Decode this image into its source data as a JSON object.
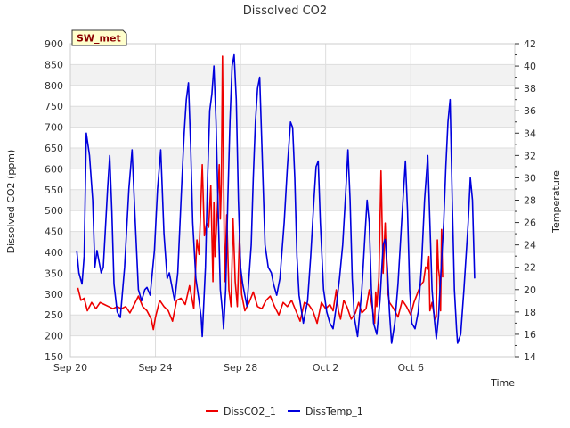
{
  "chart_data": {
    "type": "line",
    "title": "Dissolved CO2",
    "xlabel": "Time",
    "ylabel": "Dissolved CO2 (ppm)",
    "y2label": "Temperature",
    "site_badge": "SW_met",
    "xlim": [
      0,
      18
    ],
    "x_ticks": [
      {
        "value": 0,
        "label": "Sep 20"
      },
      {
        "value": 4,
        "label": "Sep 24"
      },
      {
        "value": 8,
        "label": "Sep 28"
      },
      {
        "value": 12,
        "label": "Oct 2"
      },
      {
        "value": 16,
        "label": "Oct 6"
      }
    ],
    "ylim": [
      150,
      900
    ],
    "y_ticks": [
      150,
      200,
      250,
      300,
      350,
      400,
      450,
      500,
      550,
      600,
      650,
      700,
      750,
      800,
      850,
      900
    ],
    "y2lim": [
      14,
      42
    ],
    "y2_ticks": [
      14,
      16,
      18,
      20,
      22,
      24,
      26,
      28,
      30,
      32,
      34,
      36,
      38,
      40,
      42
    ],
    "grid": true,
    "legend_position": "bottom-center",
    "series": [
      {
        "name": "DissCO2_1",
        "axis": "left",
        "color": "#ee0000",
        "points": [
          [
            0.35,
            315
          ],
          [
            0.5,
            285
          ],
          [
            0.65,
            290
          ],
          [
            0.8,
            260
          ],
          [
            1.0,
            280
          ],
          [
            1.2,
            265
          ],
          [
            1.4,
            280
          ],
          [
            1.6,
            275
          ],
          [
            1.8,
            270
          ],
          [
            2.0,
            265
          ],
          [
            2.2,
            270
          ],
          [
            2.4,
            265
          ],
          [
            2.6,
            270
          ],
          [
            2.8,
            255
          ],
          [
            3.0,
            275
          ],
          [
            3.2,
            295
          ],
          [
            3.4,
            270
          ],
          [
            3.6,
            260
          ],
          [
            3.8,
            240
          ],
          [
            3.9,
            215
          ],
          [
            4.0,
            245
          ],
          [
            4.2,
            285
          ],
          [
            4.4,
            270
          ],
          [
            4.6,
            260
          ],
          [
            4.8,
            235
          ],
          [
            5.0,
            285
          ],
          [
            5.2,
            290
          ],
          [
            5.4,
            275
          ],
          [
            5.6,
            320
          ],
          [
            5.8,
            265
          ],
          [
            5.95,
            430
          ],
          [
            6.05,
            395
          ],
          [
            6.15,
            540
          ],
          [
            6.2,
            610
          ],
          [
            6.3,
            440
          ],
          [
            6.4,
            470
          ],
          [
            6.5,
            460
          ],
          [
            6.6,
            560
          ],
          [
            6.7,
            330
          ],
          [
            6.75,
            520
          ],
          [
            6.8,
            390
          ],
          [
            6.9,
            490
          ],
          [
            7.0,
            610
          ],
          [
            7.05,
            480
          ],
          [
            7.1,
            565
          ],
          [
            7.15,
            870
          ],
          [
            7.25,
            330
          ],
          [
            7.35,
            490
          ],
          [
            7.45,
            310
          ],
          [
            7.55,
            270
          ],
          [
            7.65,
            480
          ],
          [
            7.75,
            330
          ],
          [
            7.85,
            270
          ],
          [
            7.95,
            440
          ],
          [
            8.05,
            300
          ],
          [
            8.2,
            260
          ],
          [
            8.4,
            280
          ],
          [
            8.6,
            305
          ],
          [
            8.8,
            270
          ],
          [
            9.0,
            265
          ],
          [
            9.2,
            285
          ],
          [
            9.4,
            295
          ],
          [
            9.6,
            270
          ],
          [
            9.8,
            250
          ],
          [
            10.0,
            280
          ],
          [
            10.2,
            270
          ],
          [
            10.4,
            285
          ],
          [
            10.6,
            260
          ],
          [
            10.8,
            235
          ],
          [
            11.0,
            280
          ],
          [
            11.2,
            275
          ],
          [
            11.4,
            260
          ],
          [
            11.6,
            230
          ],
          [
            11.8,
            280
          ],
          [
            12.0,
            265
          ],
          [
            12.2,
            275
          ],
          [
            12.35,
            260
          ],
          [
            12.5,
            310
          ],
          [
            12.6,
            260
          ],
          [
            12.7,
            240
          ],
          [
            12.85,
            285
          ],
          [
            13.0,
            270
          ],
          [
            13.2,
            240
          ],
          [
            13.4,
            255
          ],
          [
            13.55,
            280
          ],
          [
            13.7,
            255
          ],
          [
            13.9,
            265
          ],
          [
            14.05,
            310
          ],
          [
            14.2,
            265
          ],
          [
            14.3,
            230
          ],
          [
            14.35,
            305
          ],
          [
            14.4,
            270
          ],
          [
            14.5,
            340
          ],
          [
            14.6,
            595
          ],
          [
            14.7,
            350
          ],
          [
            14.8,
            470
          ],
          [
            14.9,
            310
          ],
          [
            15.0,
            280
          ],
          [
            15.2,
            265
          ],
          [
            15.4,
            245
          ],
          [
            15.6,
            285
          ],
          [
            15.8,
            270
          ],
          [
            16.0,
            250
          ],
          [
            16.15,
            280
          ],
          [
            16.3,
            300
          ],
          [
            16.45,
            320
          ],
          [
            16.6,
            330
          ],
          [
            16.7,
            365
          ],
          [
            16.8,
            360
          ],
          [
            16.85,
            390
          ],
          [
            16.9,
            260
          ],
          [
            17.0,
            280
          ],
          [
            17.1,
            250
          ],
          [
            17.15,
            240
          ],
          [
            17.2,
            245
          ],
          [
            17.25,
            430
          ],
          [
            17.3,
            360
          ],
          [
            17.35,
            340
          ],
          [
            17.4,
            260
          ],
          [
            17.45,
            455
          ],
          [
            17.5,
            340
          ]
        ]
      },
      {
        "name": "DissTemp_1",
        "axis": "right",
        "color": "#0000dd",
        "points": [
          [
            0.3,
            23.5
          ],
          [
            0.4,
            21.5
          ],
          [
            0.55,
            20.5
          ],
          [
            0.65,
            23
          ],
          [
            0.75,
            34
          ],
          [
            0.9,
            32
          ],
          [
            1.05,
            28
          ],
          [
            1.15,
            22
          ],
          [
            1.25,
            23.5
          ],
          [
            1.35,
            22.5
          ],
          [
            1.45,
            21.5
          ],
          [
            1.55,
            22
          ],
          [
            1.75,
            29
          ],
          [
            1.85,
            32
          ],
          [
            1.95,
            27
          ],
          [
            2.05,
            20.5
          ],
          [
            2.2,
            18
          ],
          [
            2.35,
            17.5
          ],
          [
            2.55,
            22
          ],
          [
            2.75,
            29
          ],
          [
            2.9,
            32.5
          ],
          [
            3.05,
            26
          ],
          [
            3.2,
            20
          ],
          [
            3.35,
            19
          ],
          [
            3.5,
            20
          ],
          [
            3.6,
            20.2
          ],
          [
            3.75,
            19.5
          ],
          [
            3.95,
            23.5
          ],
          [
            4.1,
            29
          ],
          [
            4.25,
            32.5
          ],
          [
            4.4,
            25
          ],
          [
            4.55,
            21
          ],
          [
            4.65,
            21.5
          ],
          [
            4.75,
            20.5
          ],
          [
            4.9,
            19
          ],
          [
            5.05,
            21.5
          ],
          [
            5.25,
            30
          ],
          [
            5.35,
            34
          ],
          [
            5.45,
            37
          ],
          [
            5.55,
            38.5
          ],
          [
            5.65,
            33
          ],
          [
            5.75,
            26
          ],
          [
            5.9,
            21
          ],
          [
            6.05,
            19
          ],
          [
            6.15,
            17.5
          ],
          [
            6.2,
            15.8
          ],
          [
            6.35,
            22
          ],
          [
            6.45,
            30
          ],
          [
            6.55,
            36
          ],
          [
            6.65,
            37.5
          ],
          [
            6.75,
            40
          ],
          [
            6.85,
            35
          ],
          [
            6.95,
            27
          ],
          [
            7.05,
            20
          ],
          [
            7.15,
            18
          ],
          [
            7.2,
            16.5
          ],
          [
            7.3,
            20
          ],
          [
            7.4,
            28
          ],
          [
            7.5,
            35
          ],
          [
            7.6,
            40
          ],
          [
            7.7,
            41
          ],
          [
            7.8,
            37
          ],
          [
            7.9,
            28
          ],
          [
            8.0,
            22
          ],
          [
            8.1,
            20.5
          ],
          [
            8.2,
            19.5
          ],
          [
            8.3,
            18.5
          ],
          [
            8.5,
            24
          ],
          [
            8.6,
            30
          ],
          [
            8.7,
            35
          ],
          [
            8.8,
            38
          ],
          [
            8.9,
            39
          ],
          [
            9.0,
            33
          ],
          [
            9.15,
            24
          ],
          [
            9.3,
            22
          ],
          [
            9.45,
            21.5
          ],
          [
            9.55,
            20.5
          ],
          [
            9.7,
            19.5
          ],
          [
            9.85,
            21
          ],
          [
            10.05,
            26
          ],
          [
            10.2,
            31
          ],
          [
            10.35,
            35
          ],
          [
            10.45,
            34.5
          ],
          [
            10.55,
            30
          ],
          [
            10.65,
            23
          ],
          [
            10.75,
            19.5
          ],
          [
            10.95,
            17
          ],
          [
            11.15,
            19
          ],
          [
            11.3,
            23
          ],
          [
            11.45,
            28
          ],
          [
            11.55,
            31
          ],
          [
            11.65,
            31.5
          ],
          [
            11.75,
            26
          ],
          [
            11.9,
            20
          ],
          [
            12.05,
            18
          ],
          [
            12.2,
            17
          ],
          [
            12.35,
            16.5
          ],
          [
            12.5,
            18.5
          ],
          [
            12.65,
            21
          ],
          [
            12.8,
            24
          ],
          [
            12.95,
            29
          ],
          [
            13.05,
            32.5
          ],
          [
            13.15,
            28
          ],
          [
            13.25,
            21
          ],
          [
            13.35,
            17.5
          ],
          [
            13.5,
            15.8
          ],
          [
            13.7,
            20
          ],
          [
            13.85,
            25
          ],
          [
            13.95,
            28
          ],
          [
            14.05,
            26
          ],
          [
            14.15,
            20
          ],
          [
            14.25,
            17
          ],
          [
            14.4,
            16
          ],
          [
            14.55,
            19
          ],
          [
            14.7,
            24
          ],
          [
            14.8,
            24.5
          ],
          [
            14.9,
            22
          ],
          [
            15.0,
            18
          ],
          [
            15.1,
            15.2
          ],
          [
            15.25,
            17
          ],
          [
            15.4,
            20.5
          ],
          [
            15.6,
            27
          ],
          [
            15.75,
            31.5
          ],
          [
            15.85,
            27
          ],
          [
            15.95,
            20
          ],
          [
            16.05,
            17
          ],
          [
            16.2,
            16.5
          ],
          [
            16.35,
            18
          ],
          [
            16.5,
            22
          ],
          [
            16.65,
            28
          ],
          [
            16.8,
            32
          ],
          [
            16.9,
            26
          ],
          [
            17.0,
            20
          ],
          [
            17.1,
            17.5
          ],
          [
            17.2,
            15.6
          ],
          [
            17.3,
            17.5
          ],
          [
            17.4,
            21
          ],
          [
            17.55,
            26
          ],
          [
            17.65,
            31
          ],
          [
            17.75,
            35
          ],
          [
            17.85,
            37
          ],
          [
            17.95,
            28
          ],
          [
            18.05,
            20
          ],
          [
            18.15,
            16.5
          ],
          [
            18.2,
            15.2
          ],
          [
            18.35,
            16
          ],
          [
            18.5,
            20
          ],
          [
            18.7,
            26
          ],
          [
            18.8,
            30
          ],
          [
            18.9,
            28
          ],
          [
            19.0,
            21
          ]
        ]
      }
    ]
  }
}
